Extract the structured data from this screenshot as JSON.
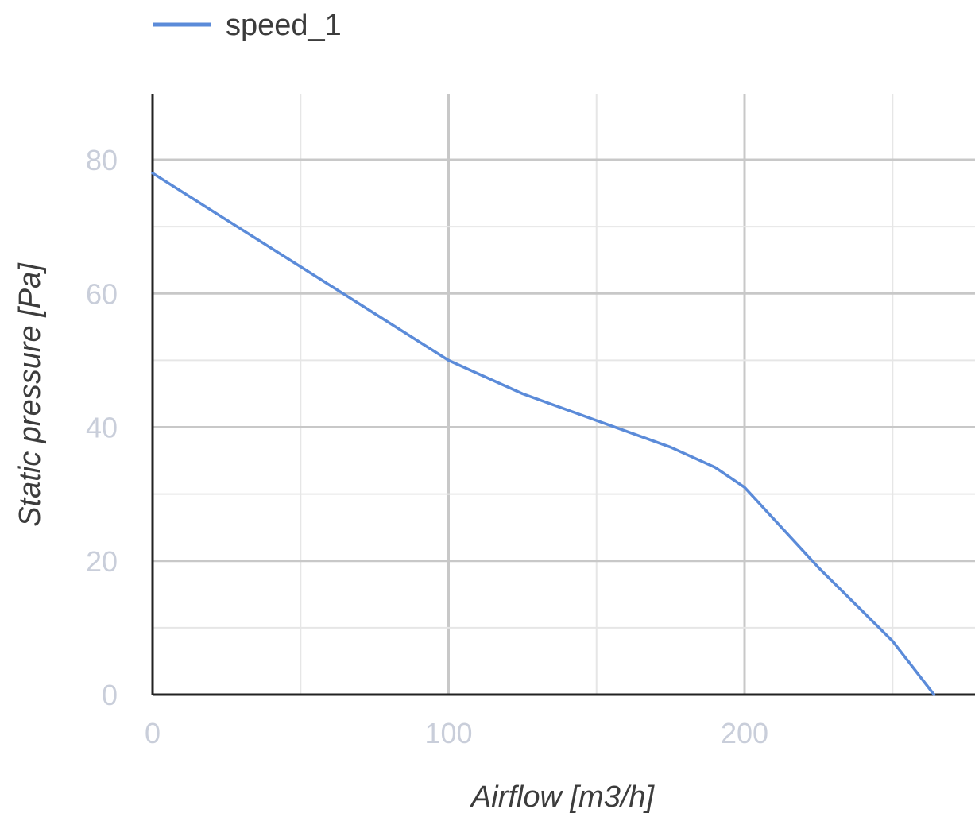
{
  "chart_data": {
    "type": "line",
    "title": "",
    "xlabel": "Airflow [m3/h]",
    "ylabel": "Static pressure [Pa]",
    "xlim": [
      0,
      280
    ],
    "ylim": [
      0,
      90
    ],
    "x_ticks": [
      "0",
      "100",
      "200"
    ],
    "y_ticks": [
      "0",
      "20",
      "40",
      "60",
      "80"
    ],
    "grid": true,
    "legend_position": "top-left",
    "series": [
      {
        "name": "speed_1",
        "color": "#5b8bd9",
        "x": [
          0,
          25,
          50,
          75,
          100,
          125,
          150,
          175,
          190,
          200,
          225,
          250,
          264
        ],
        "y": [
          78,
          71,
          64,
          57,
          50,
          45,
          41,
          37,
          34,
          31,
          19,
          8,
          0
        ]
      }
    ]
  }
}
